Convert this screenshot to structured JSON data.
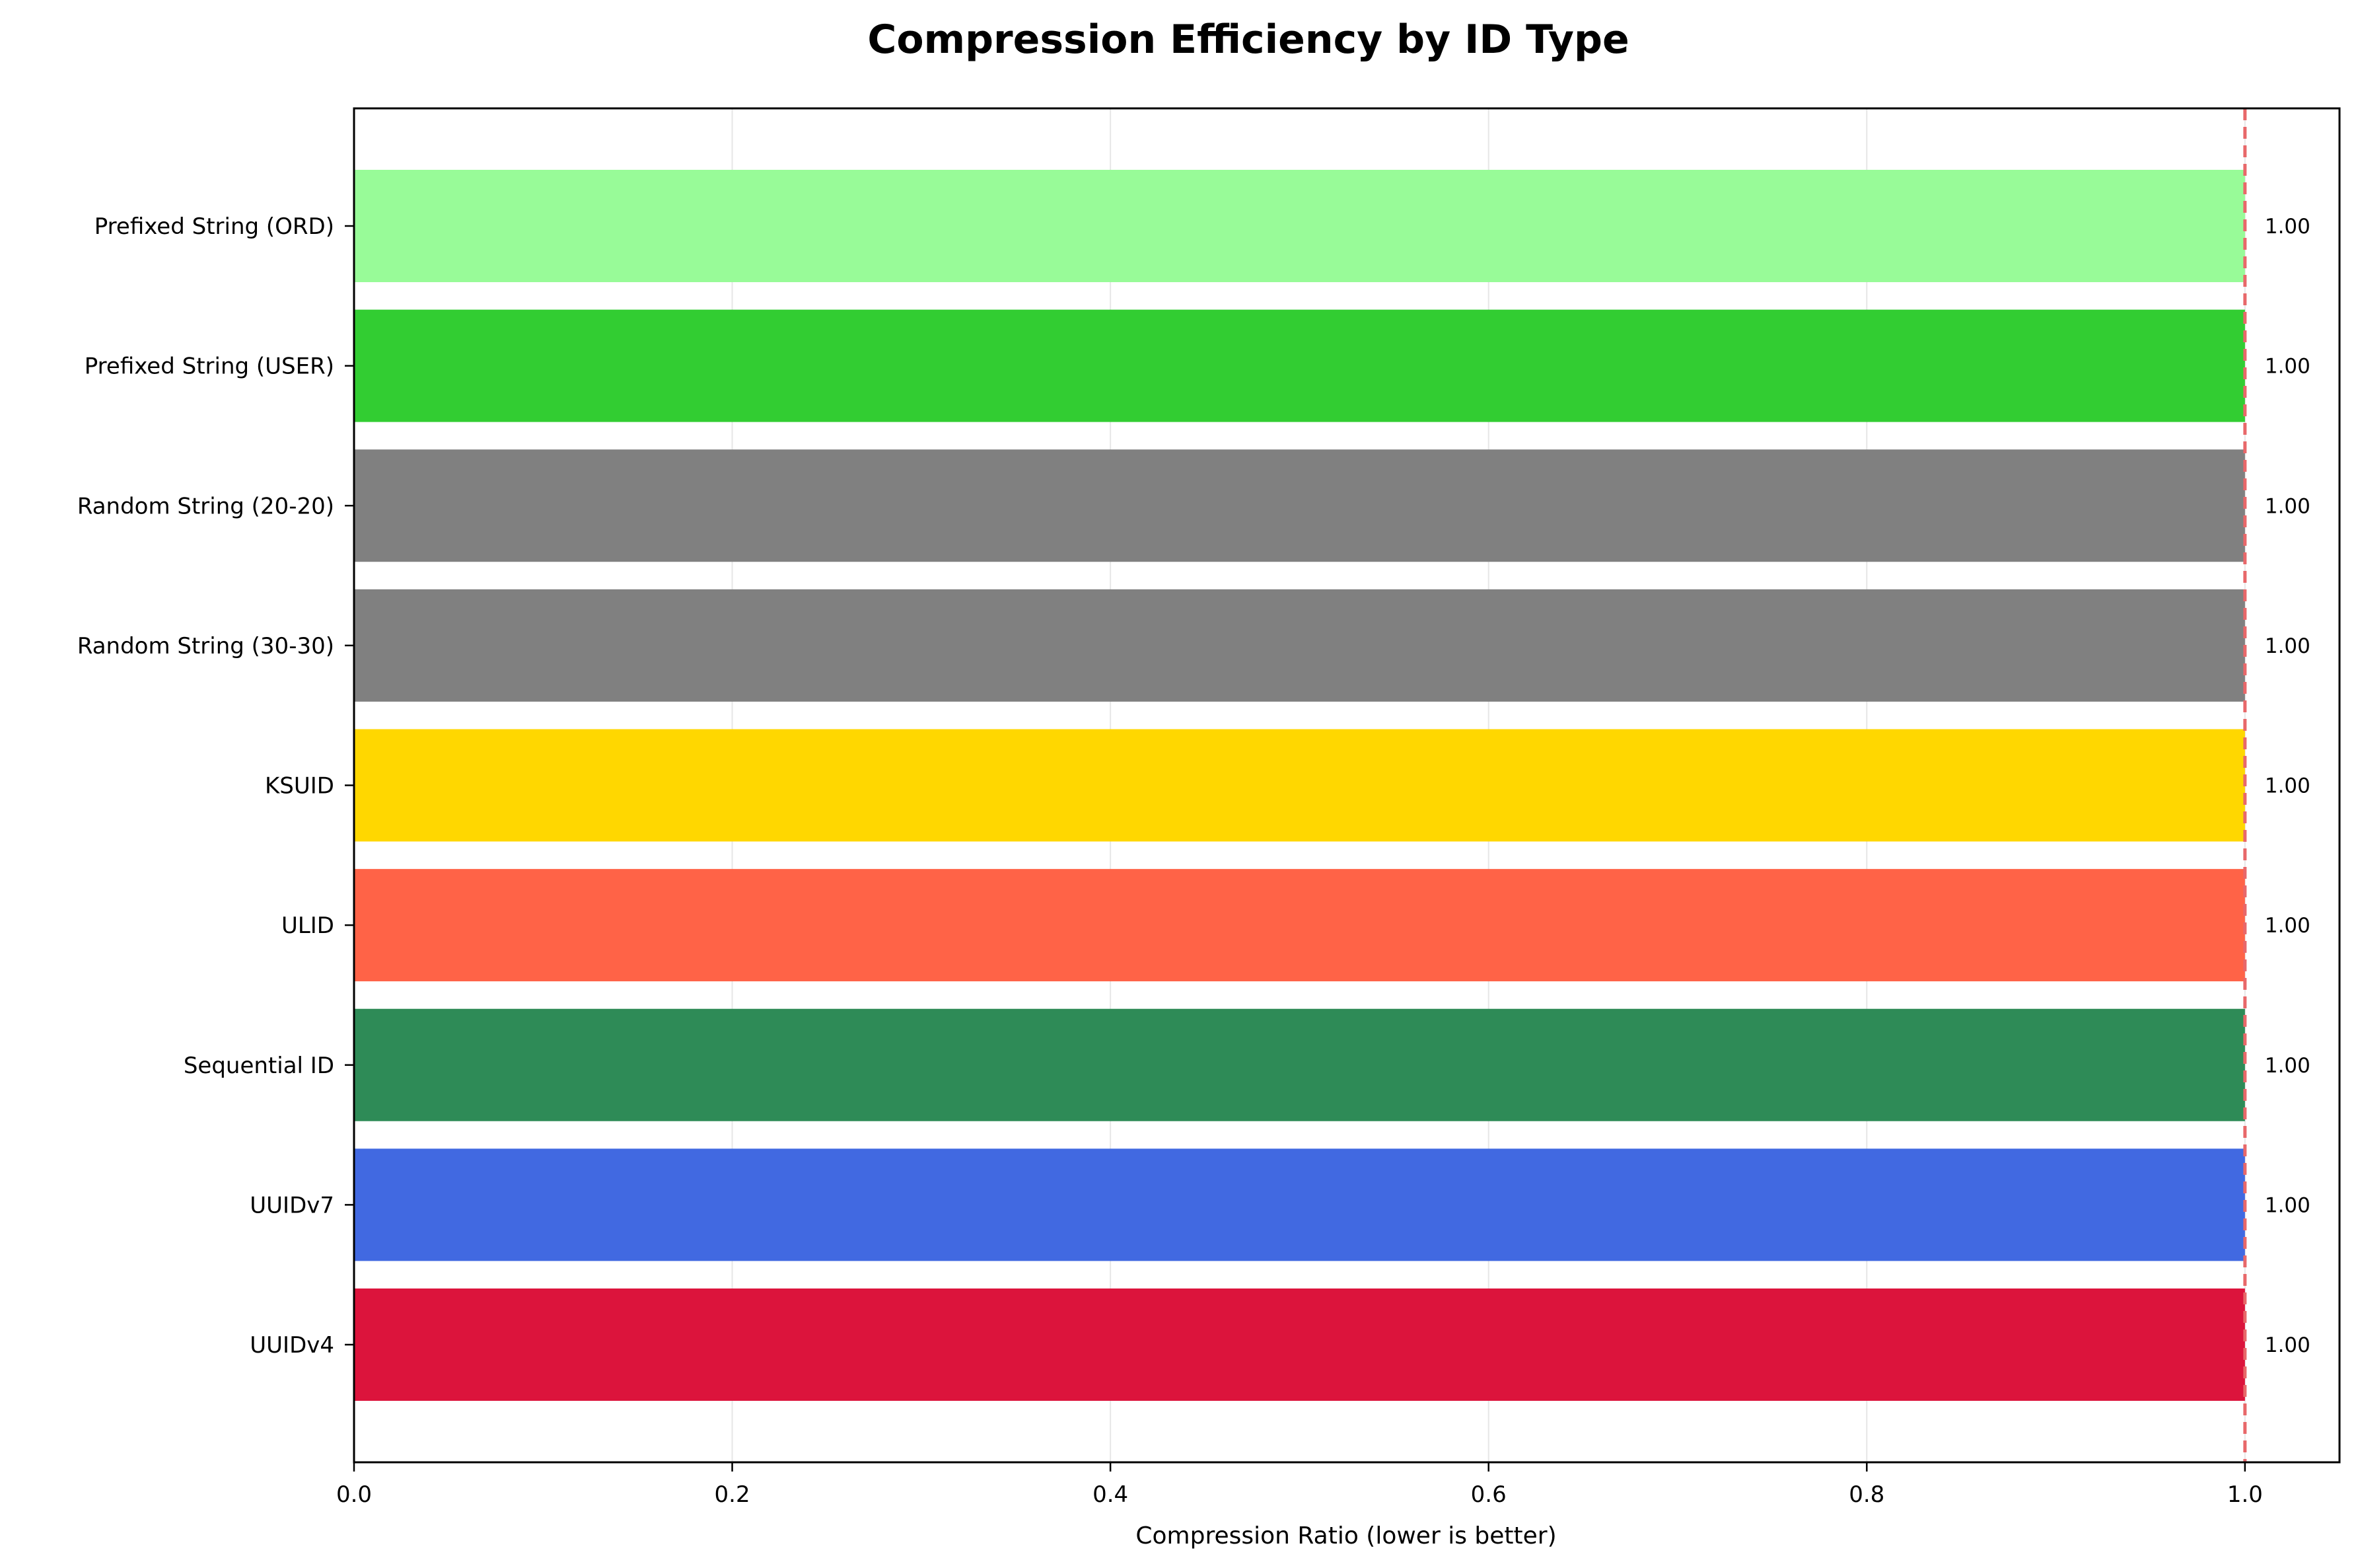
{
  "chart_data": {
    "type": "bar",
    "orientation": "horizontal",
    "title": "Compression Efficiency by ID Type",
    "xlabel": "Compression Ratio (lower is better)",
    "ylabel": "",
    "xlim": [
      0.0,
      1.05
    ],
    "xticks": [
      0.0,
      0.2,
      0.4,
      0.6,
      0.8,
      1.0
    ],
    "xtick_labels": [
      "0.0",
      "0.2",
      "0.4",
      "0.6",
      "0.8",
      "1.0"
    ],
    "grid": "x",
    "reference_line": {
      "x": 1.0,
      "style": "dashed",
      "color": "#e8686a"
    },
    "categories": [
      "Prefixed String (ORD)",
      "Prefixed String (USER)",
      "Random String (20-20)",
      "Random String (30-30)",
      "KSUID",
      "ULID",
      "Sequential ID",
      "UUIDv7",
      "UUIDv4"
    ],
    "values": [
      1.0,
      1.0,
      1.0,
      1.0,
      1.0,
      1.0,
      1.0,
      1.0,
      1.0
    ],
    "value_labels": [
      "1.00",
      "1.00",
      "1.00",
      "1.00",
      "1.00",
      "1.00",
      "1.00",
      "1.00",
      "1.00"
    ],
    "colors": [
      "#98fb98",
      "#32cd32",
      "#808080",
      "#808080",
      "#ffd700",
      "#ff6347",
      "#2e8b57",
      "#4169e1",
      "#dc143c"
    ]
  }
}
